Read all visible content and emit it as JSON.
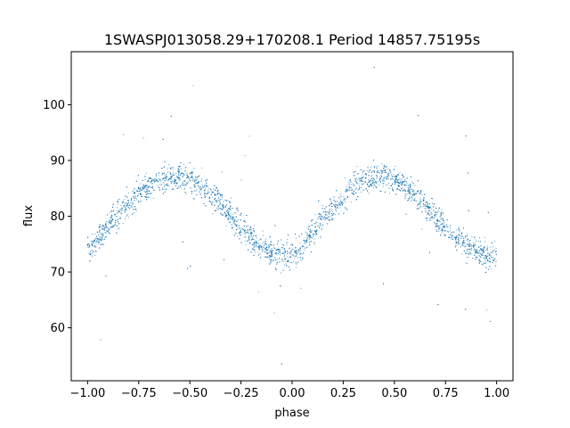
{
  "chart_data": {
    "type": "scatter",
    "title": "1SWASPJ013058.29+170208.1 Period 14857.75195s",
    "xlabel": "phase",
    "ylabel": "flux",
    "xlim": [
      -1.08,
      1.08
    ],
    "ylim": [
      50.5,
      109.5
    ],
    "xticks": [
      -1.0,
      -0.75,
      -0.5,
      -0.25,
      0.0,
      0.25,
      0.5,
      0.75,
      1.0
    ],
    "xtick_labels": [
      "−1.00",
      "−0.75",
      "−0.50",
      "−0.25",
      "0.00",
      "0.25",
      "0.50",
      "0.75",
      "1.00"
    ],
    "yticks": [
      60,
      70,
      80,
      90,
      100
    ],
    "ytick_labels": [
      "60",
      "70",
      "80",
      "90",
      "100"
    ],
    "grid": false,
    "marker_color": "#1f77b4",
    "series": [
      {
        "x": [
          -1.0,
          -0.95,
          -0.9,
          -0.85,
          -0.8,
          -0.75,
          -0.7,
          -0.65,
          -0.6,
          -0.55,
          -0.5,
          -0.45,
          -0.4,
          -0.35,
          -0.3,
          -0.25,
          -0.2,
          -0.15,
          -0.1,
          -0.05,
          0.0,
          0.05,
          0.1,
          0.15,
          0.2,
          0.25,
          0.3,
          0.35,
          0.4,
          0.45,
          0.5,
          0.55,
          0.6,
          0.65,
          0.7,
          0.75,
          0.8,
          0.85,
          0.9,
          0.95,
          1.0
        ],
        "y": [
          74,
          76,
          78.5,
          80.5,
          82,
          84,
          85.5,
          86.5,
          87,
          87,
          86.5,
          85.5,
          84,
          82,
          80,
          78,
          76,
          74.5,
          73.5,
          73,
          73,
          74.5,
          77,
          79.5,
          81.5,
          83.5,
          85.5,
          86.5,
          87,
          87,
          86.5,
          85.5,
          84,
          82,
          80,
          78,
          76.5,
          75,
          74,
          73,
          73
        ],
        "scatter": 2.4,
        "points_per_unit": 2600
      }
    ]
  }
}
